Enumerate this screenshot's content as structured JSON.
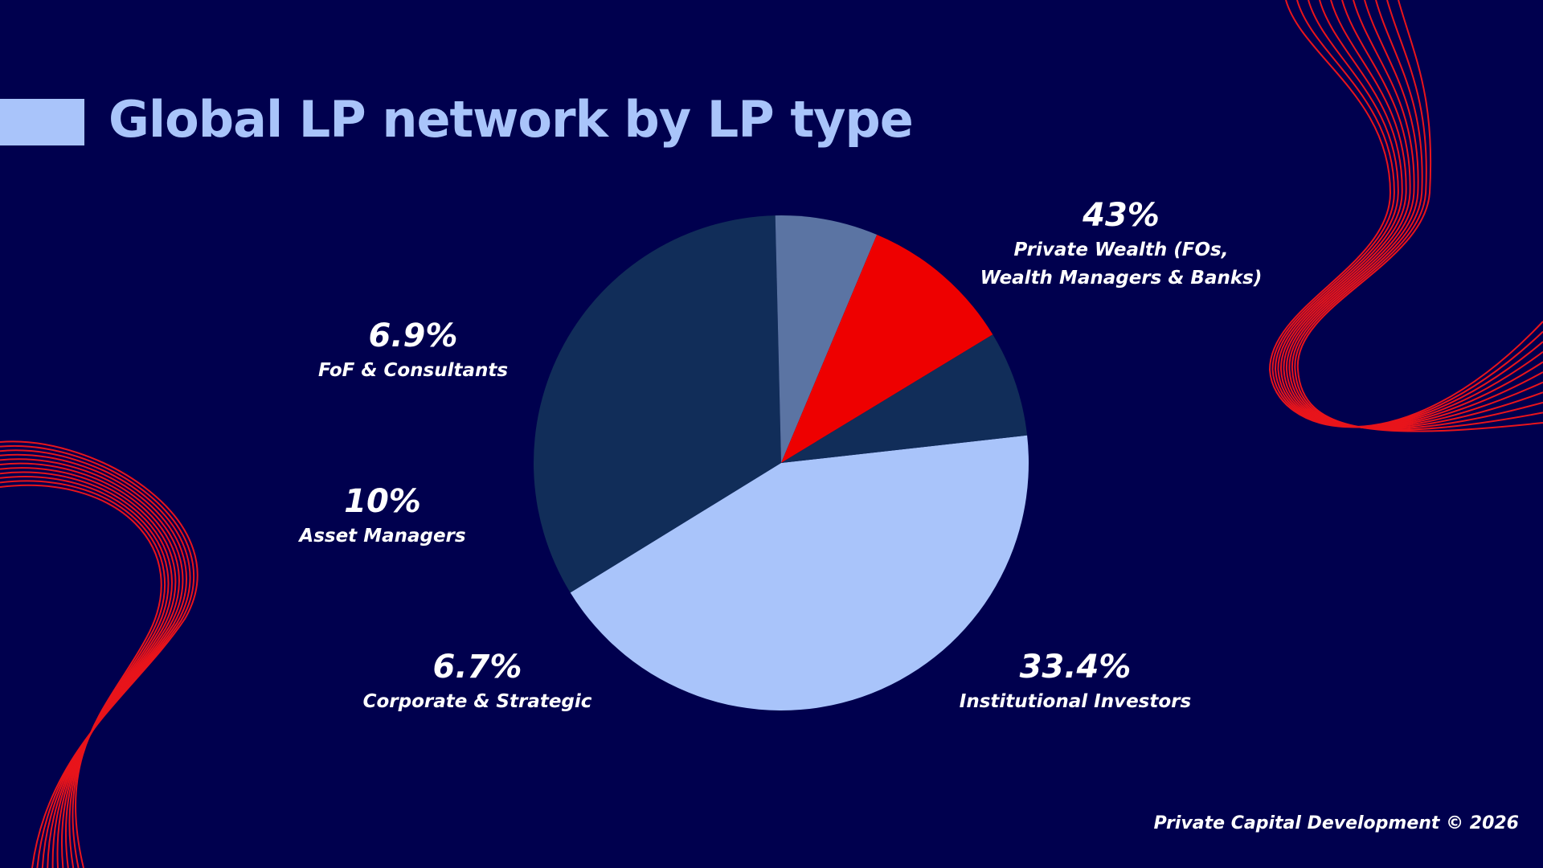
{
  "title": "Global LP network by LP type",
  "footer": "Private Capital Development © 2026",
  "colors": {
    "background": "#00004e",
    "accent": "#a9c4fa",
    "decor_lines": "#e8141b"
  },
  "chart_data": {
    "type": "pie",
    "title": "Global LP network by LP type",
    "slices": [
      {
        "label_lines": [
          "Private Wealth (FOs,",
          "Wealth Managers & Banks)"
        ],
        "value": 43,
        "display": "43%",
        "color": "#a9c4fa"
      },
      {
        "label_lines": [
          "Institutional Investors"
        ],
        "value": 33.4,
        "display": "33.4%",
        "color": "#112d59"
      },
      {
        "label_lines": [
          "Corporate & Strategic"
        ],
        "value": 6.7,
        "display": "6.7%",
        "color": "#5b74a3"
      },
      {
        "label_lines": [
          "Asset Managers"
        ],
        "value": 10,
        "display": "10%",
        "color": "#ee0000"
      },
      {
        "label_lines": [
          "FoF & Consultants"
        ],
        "value": 6.9,
        "display": "6.9%",
        "color": "#112d59"
      }
    ]
  }
}
